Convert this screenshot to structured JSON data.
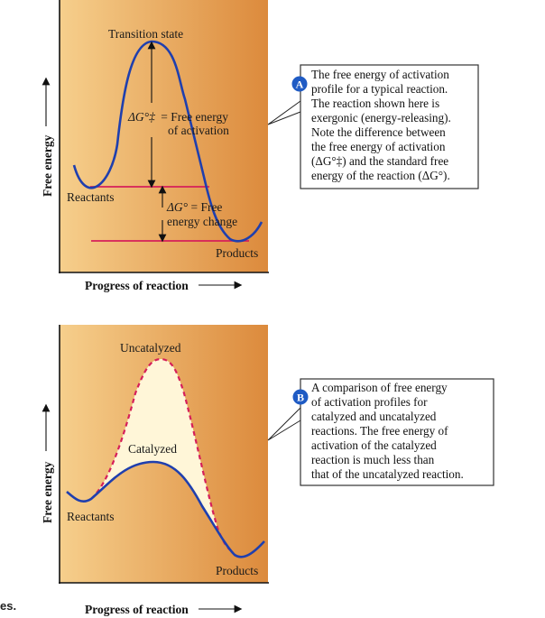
{
  "panel_a": {
    "y_axis_label": "Free energy",
    "x_axis_label": "Progress of reaction",
    "labels": {
      "transition_state": "Transition state",
      "reactants": "Reactants",
      "products": "Products",
      "activation_symbol": "ΔG°‡",
      "activation_text_1": "= Free energy",
      "activation_text_2": "of activation",
      "standard_symbol": "ΔG°",
      "standard_text_1": " = Free",
      "standard_text_2": "energy change"
    },
    "callout": {
      "badge": "A",
      "lines": [
        "The free energy of activation",
        "profile for a typical reaction.",
        "The reaction shown here is",
        "exergonic (energy-releasing).",
        "Note the difference between",
        "the free energy of activation",
        "(ΔG°‡) and the standard free",
        "energy of the reaction (ΔG°)."
      ]
    }
  },
  "panel_b": {
    "y_axis_label": "Free energy",
    "x_axis_label": "Progress of reaction",
    "labels": {
      "uncatalyzed": "Uncatalyzed",
      "catalyzed": "Catalyzed",
      "reactants": "Reactants",
      "products": "Products"
    },
    "callout": {
      "badge": "B",
      "lines": [
        "A comparison of free energy",
        "of activation profiles for",
        "catalyzed and uncatalyzed",
        "reactions. The free energy of",
        "activation of the catalyzed",
        "reaction is much less than",
        "that of the uncatalyzed reaction."
      ]
    }
  },
  "stray_text": "es.",
  "colors": {
    "panel_gradient_left": "#f6cf8c",
    "panel_gradient_right": "#dc8a3c",
    "curve_blue": "#1f3fae",
    "level_red": "#d61f5a",
    "badge_blue": "#1f5bc4",
    "fill_cream": "#fff6d8"
  }
}
